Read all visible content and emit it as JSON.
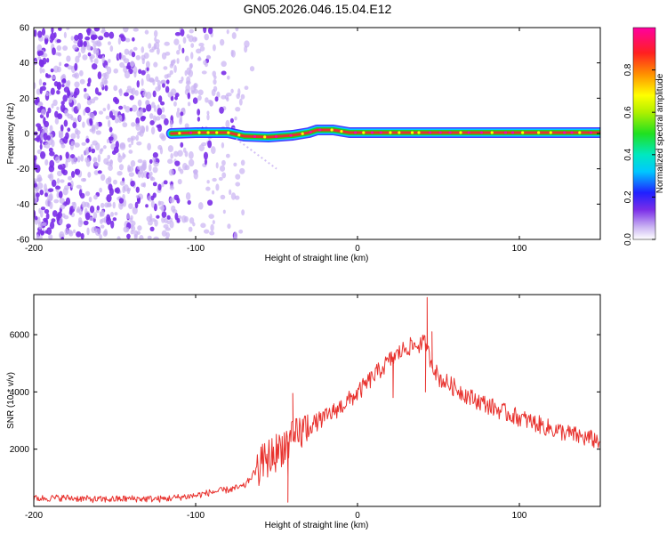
{
  "figure": {
    "title": "GN05.2026.046.15.04.E12"
  },
  "colors": {
    "snr_line": "#e8322e",
    "band_core": "#e8322e",
    "band_halo": "#20d020",
    "noise_purple": "#7a2ee8",
    "noise_light": "#c9b2f2"
  },
  "chart_data": [
    {
      "type": "heatmap",
      "name": "spectrogram",
      "title": "GN05.2026.046.15.04.E12",
      "xlabel": "Height of straight line (km)",
      "ylabel": "Frequency (Hz)",
      "xlim": [
        -200,
        150
      ],
      "ylim": [
        -60,
        60
      ],
      "xticks": [
        -200,
        -100,
        0,
        100
      ],
      "xtick_labels": [
        "-200",
        "-100",
        "0",
        "100"
      ],
      "yticks": [
        -60,
        -40,
        -20,
        0,
        20,
        40,
        60
      ],
      "ytick_labels": [
        "-60",
        "-40",
        "-20",
        "0",
        "20",
        "40",
        "60"
      ],
      "noise_region_x": [
        -200,
        -70
      ],
      "signal_band": {
        "freq_center": 0,
        "x_start": -115,
        "x_end": 150,
        "track": [
          {
            "x": -115,
            "f": 0
          },
          {
            "x": -100,
            "f": 0.5
          },
          {
            "x": -80,
            "f": 0.5
          },
          {
            "x": -70,
            "f": -1.5
          },
          {
            "x": -55,
            "f": -2
          },
          {
            "x": -40,
            "f": -1
          },
          {
            "x": -30,
            "f": 0.5
          },
          {
            "x": -25,
            "f": 2
          },
          {
            "x": -15,
            "f": 2
          },
          {
            "x": -5,
            "f": 0.5
          },
          {
            "x": 10,
            "f": 0.5
          },
          {
            "x": 150,
            "f": 0.5
          }
        ]
      },
      "colorbar": {
        "label": "Normalized spectral amplitude",
        "range": [
          0,
          1
        ],
        "ticks": [
          0.0,
          0.2,
          0.4,
          0.6,
          0.8
        ],
        "tick_labels": [
          "0.0",
          "0.2",
          "0.4",
          "0.6",
          "0.8"
        ]
      }
    },
    {
      "type": "line",
      "name": "snr",
      "xlabel": "Height of straight line (km)",
      "ylabel": "SNR (10 * v/v)",
      "xlim": [
        -200,
        150
      ],
      "ylim": [
        0,
        7400
      ],
      "xticks": [
        -200,
        -100,
        0,
        100
      ],
      "xtick_labels": [
        "-200",
        "-100",
        "0",
        "100"
      ],
      "yticks": [
        2000,
        4000,
        6000
      ],
      "ytick_labels": [
        "2000",
        "4000",
        "6000"
      ],
      "series": [
        {
          "name": "SNR",
          "x": [
            -200,
            -180,
            -160,
            -140,
            -120,
            -100,
            -90,
            -80,
            -70,
            -62,
            -55,
            -50,
            -45,
            -40,
            -35,
            -30,
            -20,
            -10,
            0,
            10,
            20,
            30,
            38,
            42,
            44,
            50,
            60,
            70,
            80,
            90,
            100,
            110,
            120,
            130,
            140,
            150
          ],
          "y": [
            280,
            300,
            240,
            270,
            260,
            380,
            500,
            580,
            700,
            1300,
            1700,
            1900,
            2200,
            2300,
            2600,
            2800,
            3100,
            3500,
            3950,
            4550,
            5100,
            5550,
            5650,
            5700,
            5300,
            4500,
            4150,
            3800,
            3550,
            3300,
            3100,
            2900,
            2700,
            2550,
            2400,
            2300
          ],
          "spikes": [
            {
              "x": -40,
              "y": 3950
            },
            {
              "x": -43,
              "y": 150
            },
            {
              "x": -15,
              "y": 3300
            },
            {
              "x": 22,
              "y": 3800
            },
            {
              "x": 43,
              "y": 7300
            },
            {
              "x": 42,
              "y": 4000
            },
            {
              "x": 46,
              "y": 6100
            }
          ]
        }
      ]
    }
  ]
}
